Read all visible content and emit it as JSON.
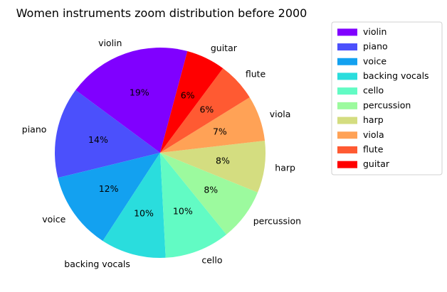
{
  "chart_data": {
    "type": "pie",
    "title": "Women instruments zoom distribution before 2000",
    "legend_position": "upper-right-outside",
    "slices": [
      {
        "label": "violin",
        "value": 19,
        "pct_label": "19%",
        "color": "#8000ff"
      },
      {
        "label": "piano",
        "value": 14,
        "pct_label": "14%",
        "color": "#4b50fc"
      },
      {
        "label": "voice",
        "value": 12,
        "pct_label": "12%",
        "color": "#13a1f0"
      },
      {
        "label": "backing vocals",
        "value": 10,
        "pct_label": "10%",
        "color": "#2adddd"
      },
      {
        "label": "cello",
        "value": 10,
        "pct_label": "10%",
        "color": "#62fbc4"
      },
      {
        "label": "percussion",
        "value": 8,
        "pct_label": "8%",
        "color": "#9cfa9e"
      },
      {
        "label": "harp",
        "value": 8,
        "pct_label": "8%",
        "color": "#d4dd80"
      },
      {
        "label": "viola",
        "value": 7,
        "pct_label": "7%",
        "color": "#ffa256"
      },
      {
        "label": "flute",
        "value": 6,
        "pct_label": "6%",
        "color": "#ff5a32"
      },
      {
        "label": "guitar",
        "value": 6,
        "pct_label": "6%",
        "color": "#ff0000"
      }
    ],
    "legend": [
      {
        "label": "violin",
        "color": "#8000ff"
      },
      {
        "label": "piano",
        "color": "#4b50fc"
      },
      {
        "label": "voice",
        "color": "#13a1f0"
      },
      {
        "label": "backing vocals",
        "color": "#2adddd"
      },
      {
        "label": "cello",
        "color": "#62fbc4"
      },
      {
        "label": "percussion",
        "color": "#9cfa9e"
      },
      {
        "label": "harp",
        "color": "#d4dd80"
      },
      {
        "label": "viola",
        "color": "#ffa256"
      },
      {
        "label": "flute",
        "color": "#ff5a32"
      },
      {
        "label": "guitar",
        "color": "#ff0000"
      }
    ]
  }
}
